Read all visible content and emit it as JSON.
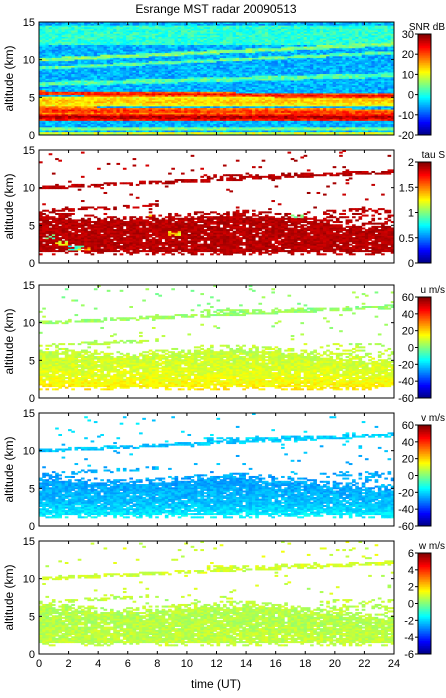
{
  "figure": {
    "title": "Esrange MST radar 20090513",
    "xlabel": "time (UT)"
  },
  "chart_data": [
    {
      "type": "heatmap",
      "quantity": "SNR",
      "colorbar_label": "SNR dB",
      "ylabel": "altitude (km)",
      "xlim": [
        0,
        24
      ],
      "ylim": [
        0,
        15
      ],
      "xticks": [
        0,
        2,
        4,
        6,
        8,
        10,
        12,
        14,
        16,
        18,
        20,
        22,
        24
      ],
      "yticks": [
        0,
        5,
        10,
        15
      ],
      "clim": [
        -20,
        30
      ],
      "cticks": [
        -20,
        -10,
        0,
        10,
        20,
        30
      ],
      "colormap": "jet",
      "coverage": "full",
      "background_value": -5,
      "layers": [
        {
          "alt_start": 2.4,
          "alt_end": 2.4,
          "thickness": 0.9,
          "value": 28
        },
        {
          "alt_start": 3.3,
          "alt_end": 3.0,
          "thickness": 1.0,
          "value": 22
        },
        {
          "alt_start": 4.5,
          "alt_end": 4.5,
          "thickness": 1.3,
          "value": 14
        },
        {
          "alt_start": 5.6,
          "alt_end": 5.2,
          "thickness": 0.6,
          "value": 24
        },
        {
          "alt_start": 0.9,
          "alt_end": 0.9,
          "thickness": 0.5,
          "value": 5
        },
        {
          "alt_start": 0.3,
          "alt_end": 0.3,
          "thickness": 0.4,
          "value": 10
        },
        {
          "alt_start": 10.0,
          "alt_end": 12.1,
          "thickness": 0.5,
          "value": 6
        },
        {
          "alt_start": 8.9,
          "alt_end": 11.0,
          "thickness": 0.4,
          "value": 4
        },
        {
          "alt_start": 6.8,
          "alt_end": 8.0,
          "thickness": 0.6,
          "value": 3
        },
        {
          "alt_start": 13.3,
          "alt_end": 13.3,
          "thickness": 2.5,
          "value": 1
        }
      ]
    },
    {
      "type": "heatmap",
      "quantity": "tau",
      "colorbar_label": "tau S",
      "ylabel": "altitude (km)",
      "xlim": [
        0,
        24
      ],
      "ylim": [
        0,
        15
      ],
      "xticks": [
        0,
        2,
        4,
        6,
        8,
        10,
        12,
        14,
        16,
        18,
        20,
        22,
        24
      ],
      "yticks": [
        0,
        5,
        10,
        15
      ],
      "clim": [
        0,
        2
      ],
      "cticks": [
        0,
        0.5,
        1,
        1.5,
        2
      ],
      "colormap": "jet",
      "coverage": "echo",
      "base_value": 1.95,
      "anomalies": [
        {
          "t": 0.8,
          "alt": 3.5,
          "value": 1.0
        },
        {
          "t": 1.5,
          "alt": 2.6,
          "value": 1.2
        },
        {
          "t": 2.5,
          "alt": 2.0,
          "value": 0.9
        },
        {
          "t": 3.2,
          "alt": 1.8,
          "value": 1.4
        },
        {
          "t": 7.5,
          "alt": 6.6,
          "value": 1.4
        },
        {
          "t": 9.0,
          "alt": 4.0,
          "value": 1.3
        },
        {
          "t": 17.5,
          "alt": 6.3,
          "value": 1.1
        }
      ]
    },
    {
      "type": "heatmap",
      "quantity": "u",
      "colorbar_label": "u m/s",
      "ylabel": "altitude (km)",
      "xlim": [
        0,
        24
      ],
      "ylim": [
        0,
        15
      ],
      "xticks": [
        0,
        2,
        4,
        6,
        8,
        10,
        12,
        14,
        16,
        18,
        20,
        22,
        24
      ],
      "yticks": [
        0,
        5,
        10,
        15
      ],
      "clim": [
        -60,
        60
      ],
      "cticks": [
        -60,
        -40,
        -20,
        0,
        20,
        40,
        60
      ],
      "colormap": "jet",
      "coverage": "echo",
      "profile": [
        [
          1,
          18
        ],
        [
          3,
          12
        ],
        [
          6,
          8
        ],
        [
          10,
          4
        ],
        [
          12,
          2
        ]
      ]
    },
    {
      "type": "heatmap",
      "quantity": "v",
      "colorbar_label": "v m/s",
      "ylabel": "altitude (km)",
      "xlim": [
        0,
        24
      ],
      "ylim": [
        0,
        15
      ],
      "xticks": [
        0,
        2,
        4,
        6,
        8,
        10,
        12,
        14,
        16,
        18,
        20,
        22,
        24
      ],
      "yticks": [
        0,
        5,
        10,
        15
      ],
      "clim": [
        -60,
        60
      ],
      "cticks": [
        -60,
        -40,
        -20,
        0,
        20,
        40,
        60
      ],
      "colormap": "jet",
      "coverage": "echo",
      "profile": [
        [
          1,
          -15
        ],
        [
          3,
          -22
        ],
        [
          6,
          -26
        ],
        [
          10,
          -22
        ],
        [
          12,
          -20
        ]
      ]
    },
    {
      "type": "heatmap",
      "quantity": "w",
      "colorbar_label": "w m/s",
      "ylabel": "altitude (km)",
      "xlim": [
        0,
        24
      ],
      "ylim": [
        0,
        15
      ],
      "xticks": [
        0,
        2,
        4,
        6,
        8,
        10,
        12,
        14,
        16,
        18,
        20,
        22,
        24
      ],
      "yticks": [
        0,
        5,
        10,
        15
      ],
      "clim": [
        -6,
        6
      ],
      "cticks": [
        -6,
        -4,
        -2,
        0,
        2,
        4,
        6
      ],
      "colormap": "jet",
      "coverage": "echo",
      "profile": [
        [
          1,
          0.8
        ],
        [
          5,
          0.6
        ],
        [
          10,
          0.9
        ],
        [
          12,
          1.0
        ]
      ]
    }
  ]
}
